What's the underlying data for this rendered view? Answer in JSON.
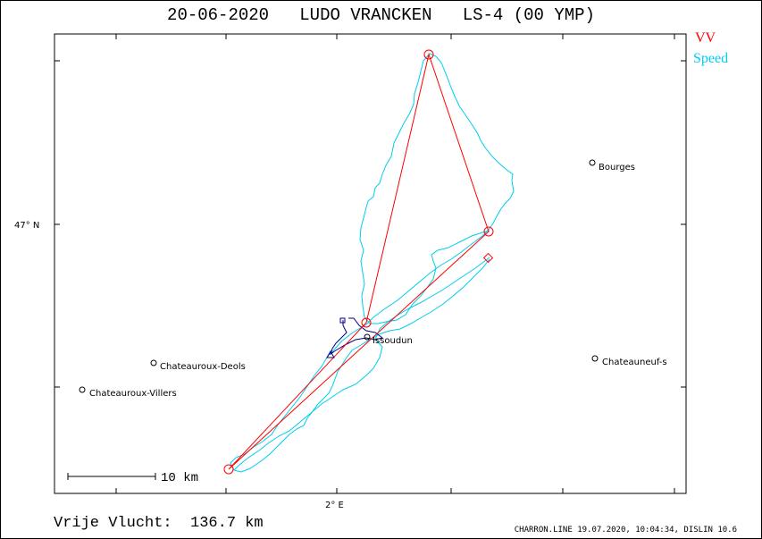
{
  "title": "20-06-2020   LUDO VRANCKEN   LS-4 (00 YMP)",
  "legend": {
    "vv": {
      "label": "VV",
      "color": "#ff0000"
    },
    "speed": {
      "label": "Speed",
      "color": "#00ccee"
    }
  },
  "axes": {
    "lat_label": "47° N",
    "lon_label": "2° E"
  },
  "places": [
    {
      "name": "Bourges"
    },
    {
      "name": "Issoudun"
    },
    {
      "name": "Chateauroux-Deols"
    },
    {
      "name": "Chateauroux-Villers"
    },
    {
      "name": "Chateauneuf-s"
    }
  ],
  "scale_bar": {
    "label": "10 km"
  },
  "footer": {
    "distance": "Vrije Vlucht:  136.7 km",
    "info": "CHARRON.LINE 19.07.2020, 10:04:34, DISLIN 10.6"
  },
  "colors": {
    "task": "#ff0000",
    "track": "#00ccee",
    "track_start": "#000080",
    "frame": "#000000"
  }
}
